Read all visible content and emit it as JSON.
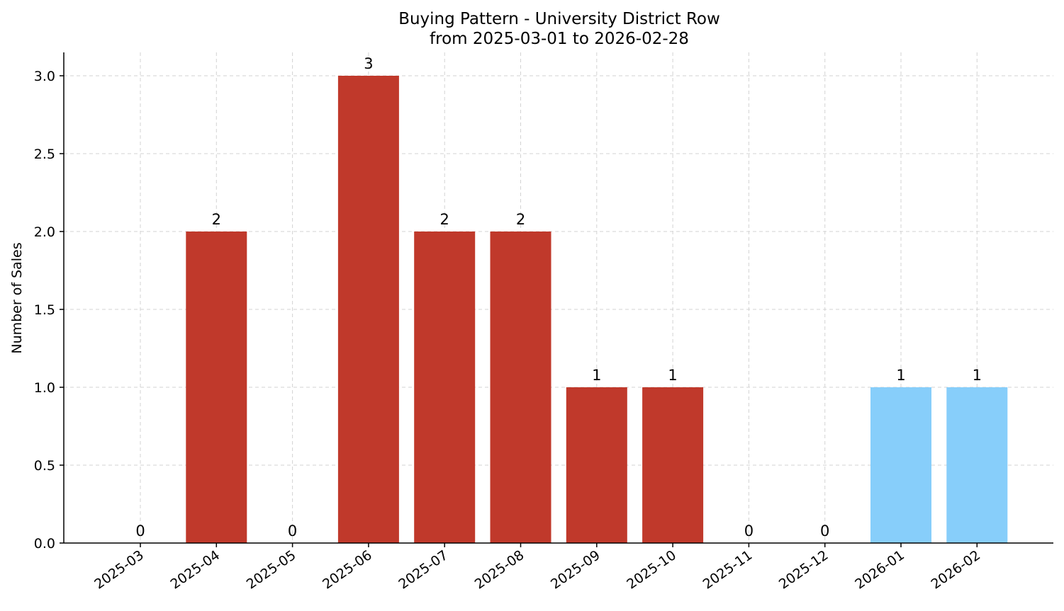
{
  "chart_data": {
    "type": "bar",
    "title": "Buying Pattern - University District Row",
    "subtitle": "from 2025-03-01 to 2026-02-28",
    "xlabel": "",
    "ylabel": "Number of Sales",
    "categories": [
      "2025-03",
      "2025-04",
      "2025-05",
      "2025-06",
      "2025-07",
      "2025-08",
      "2025-09",
      "2025-10",
      "2025-11",
      "2025-12",
      "2026-01",
      "2026-02"
    ],
    "values": [
      0,
      2,
      0,
      3,
      2,
      2,
      1,
      1,
      0,
      0,
      1,
      1
    ],
    "data_labels": [
      "0",
      "2",
      "0",
      "3",
      "2",
      "2",
      "1",
      "1",
      "0",
      "0",
      "1",
      "1"
    ],
    "bar_colors": [
      "#c0392b",
      "#c0392b",
      "#c0392b",
      "#c0392b",
      "#c0392b",
      "#c0392b",
      "#c0392b",
      "#c0392b",
      "#c0392b",
      "#c0392b",
      "#87cefa",
      "#87cefa"
    ],
    "ylim": [
      0,
      3.15
    ],
    "yticks": [
      0,
      0.5,
      1,
      1.5,
      2,
      2.5,
      3
    ],
    "ytick_labels": [
      "0.0",
      "0.5",
      "1.0",
      "1.5",
      "2.0",
      "2.5",
      "3.0"
    ],
    "grid": true,
    "legend": "none"
  }
}
